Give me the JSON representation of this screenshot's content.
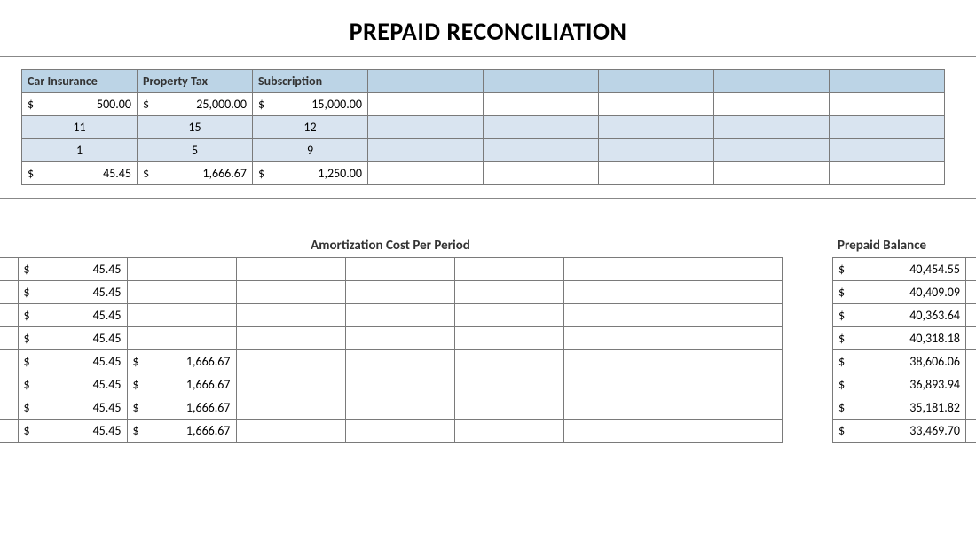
{
  "title": "PREPAID RECONCILIATION",
  "summary": {
    "headers": [
      "Car Insurance",
      "Property Tax",
      "Subscription"
    ],
    "extra_cols": 5,
    "rows": [
      {
        "type": "money",
        "shade": false,
        "values": [
          "500.00",
          "25,000.00",
          "15,000.00"
        ]
      },
      {
        "type": "plain",
        "shade": true,
        "values": [
          "11",
          "15",
          "12"
        ]
      },
      {
        "type": "plain",
        "shade": true,
        "values": [
          "1",
          "5",
          "9"
        ]
      },
      {
        "type": "money",
        "shade": false,
        "values": [
          "45.45",
          "1,666.67",
          "1,250.00"
        ]
      }
    ],
    "header_bg": "#bcd4e6",
    "shade_bg": "#d9e4f0",
    "border_color": "#7a7a7a"
  },
  "amortization": {
    "title": "Amortization Cost Per Period",
    "columns": 7,
    "rows": [
      [
        "45.45",
        "",
        "",
        "",
        "",
        "",
        ""
      ],
      [
        "45.45",
        "",
        "",
        "",
        "",
        "",
        ""
      ],
      [
        "45.45",
        "",
        "",
        "",
        "",
        "",
        ""
      ],
      [
        "45.45",
        "",
        "",
        "",
        "",
        "",
        ""
      ],
      [
        "45.45",
        "1,666.67",
        "",
        "",
        "",
        "",
        ""
      ],
      [
        "45.45",
        "1,666.67",
        "",
        "",
        "",
        "",
        ""
      ],
      [
        "45.45",
        "1,666.67",
        "",
        "",
        "",
        "",
        ""
      ],
      [
        "45.45",
        "1,666.67",
        "",
        "",
        "",
        "",
        ""
      ]
    ],
    "currency": "$"
  },
  "balance": {
    "title": "Prepaid Balance",
    "rows": [
      "40,454.55",
      "40,409.09",
      "40,363.64",
      "40,318.18",
      "38,606.06",
      "36,893.94",
      "35,181.82",
      "33,469.70"
    ],
    "currency": "$"
  },
  "colors": {
    "background": "#ffffff",
    "text": "#000000",
    "rule": "#888888"
  },
  "typography": {
    "title_fontsize": 28,
    "cell_fontsize": 14,
    "section_title_fontsize": 15,
    "font_family": "Calibri"
  }
}
